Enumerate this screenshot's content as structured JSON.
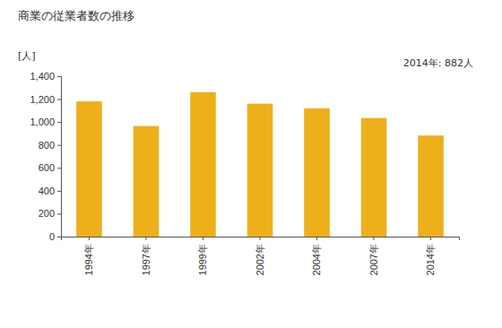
{
  "chart_data": {
    "type": "bar",
    "title": "商業の従業者数の推移",
    "y_label": "[人]",
    "annotation": "2014年: 882人",
    "categories": [
      "1994年",
      "1997年",
      "1999年",
      "2002年",
      "2004年",
      "2007年",
      "2014年"
    ],
    "values": [
      1180,
      965,
      1260,
      1160,
      1120,
      1035,
      882
    ],
    "color": "#edb01b",
    "ylim": [
      0,
      1400
    ],
    "yticks": [
      0,
      200,
      400,
      600,
      800,
      {
        "value": 1000,
        "label": "1,000"
      },
      {
        "value": 1200,
        "label": "1,200"
      },
      {
        "value": 1400,
        "label": "1,400"
      }
    ],
    "grid": false
  }
}
